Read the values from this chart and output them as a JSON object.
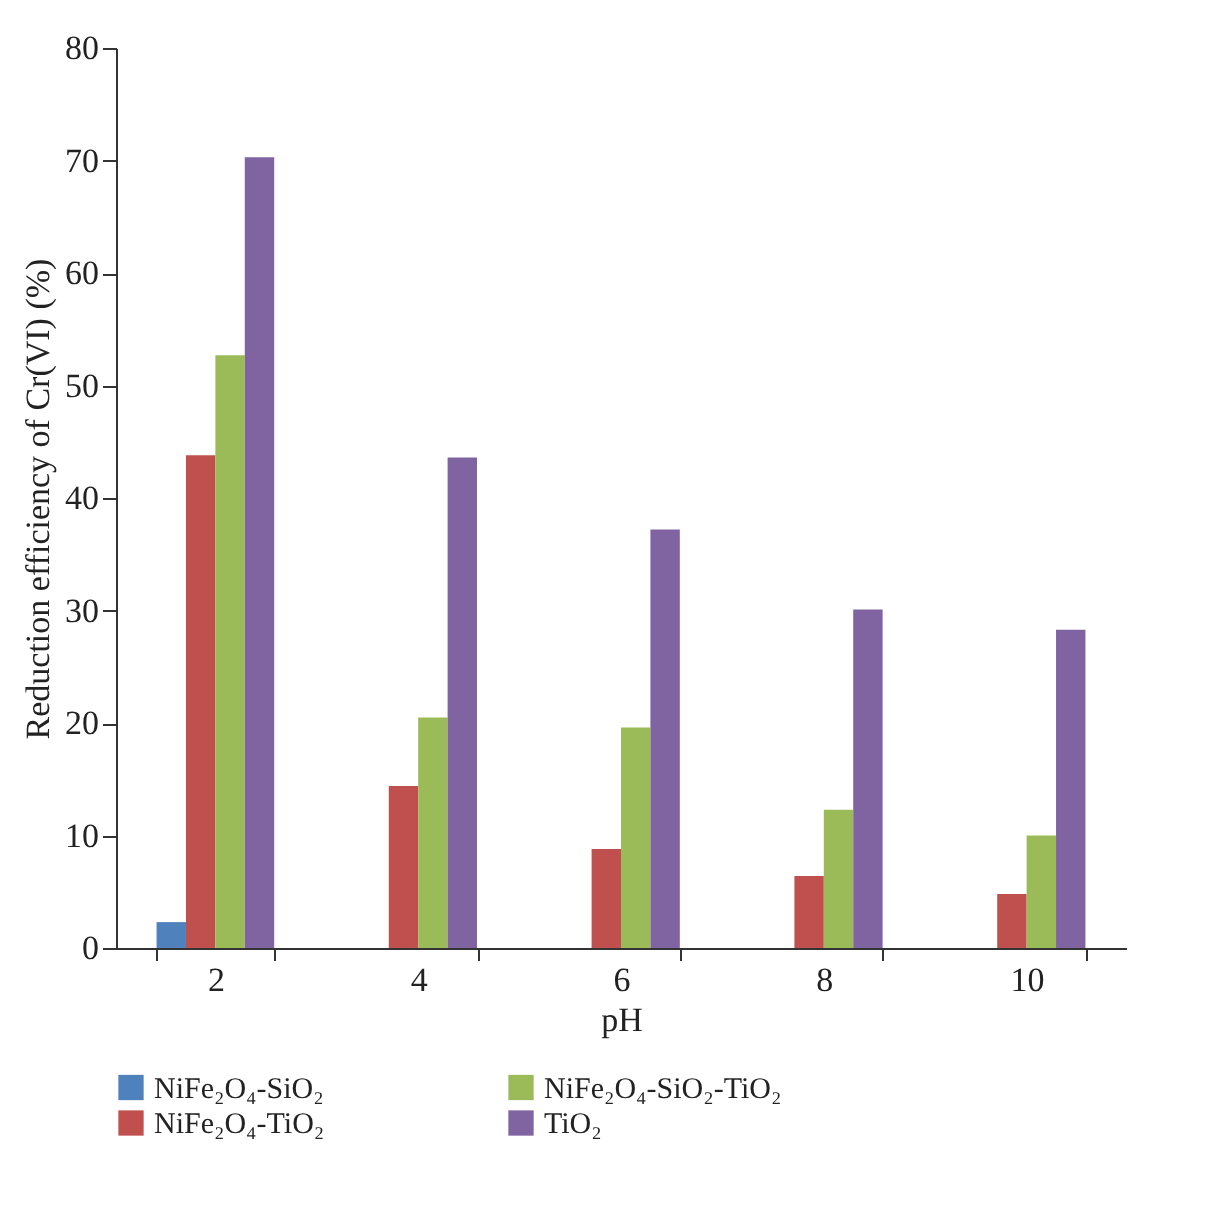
{
  "chart_data": {
    "type": "bar",
    "xlabel": "pH",
    "ylabel": "Reduction efficiency of Cr(VI) (%)",
    "categories": [
      "2",
      "4",
      "6",
      "8",
      "10"
    ],
    "series": [
      {
        "name": "NiFe₂O₄-SiO₂",
        "color": "#4f81bd",
        "values": [
          2.3,
          null,
          null,
          null,
          null
        ]
      },
      {
        "name": "NiFe₂O₄-TiO₂",
        "color": "#c0504d",
        "values": [
          43.8,
          14.4,
          8.8,
          6.4,
          4.8
        ]
      },
      {
        "name": "NiFe₂O₄-SiO₂-TiO₂",
        "color": "#9bbb59",
        "values": [
          52.7,
          20.5,
          19.6,
          12.3,
          10.0
        ]
      },
      {
        "name": "TiO₂",
        "color": "#8064a2",
        "values": [
          70.3,
          43.6,
          37.2,
          30.1,
          28.3
        ]
      }
    ],
    "ylim": [
      0,
      80
    ],
    "yticks": [
      0,
      10,
      20,
      30,
      40,
      50,
      60,
      70,
      80
    ],
    "grid": false,
    "legend": "bottom"
  }
}
